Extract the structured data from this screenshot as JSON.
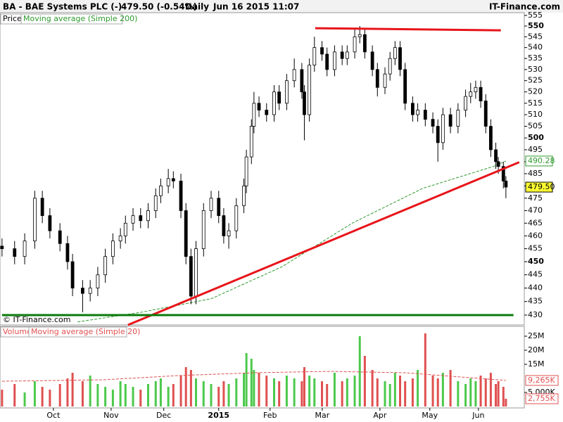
{
  "header": {
    "title": "BA - BAE Systems PLC (-)",
    "quote": "479.50 (-0.54%)",
    "period": "Daily",
    "time": "Jun 16 2015 11:07",
    "brand": "IT-Finance.com",
    "copyright": "© IT-Finance.com"
  },
  "chart_data": [
    {
      "type": "candlestick",
      "legend": "Price",
      "log_scale": true,
      "up_color": "#ffffff",
      "down_color": "#000000",
      "x": [
        0,
        5,
        9,
        13,
        16,
        19,
        23,
        26,
        28,
        32,
        35,
        38,
        41,
        44,
        47,
        49,
        52,
        55,
        58,
        61,
        63,
        66,
        68,
        71,
        73,
        75,
        77,
        80,
        83,
        86,
        88,
        90,
        93,
        96,
        97,
        99,
        100,
        102,
        105,
        108,
        110,
        113,
        116,
        119,
        120,
        122,
        124,
        127,
        129,
        132,
        135,
        137,
        140,
        142,
        144,
        147,
        149,
        152,
        154,
        156,
        158,
        160,
        163,
        165,
        168,
        171,
        173,
        175,
        178,
        181,
        184,
        186,
        188,
        190,
        192,
        194,
        196,
        197,
        199,
        200
      ],
      "open": [
        456,
        455,
        452,
        458,
        475,
        468,
        462,
        457,
        450,
        440,
        438,
        440,
        445,
        452,
        458,
        460,
        465,
        468,
        466,
        470,
        476,
        480,
        483,
        482,
        470,
        452,
        437,
        455,
        470,
        475,
        468,
        460,
        462,
        472,
        480,
        492,
        505,
        515,
        512,
        510,
        520,
        515,
        525,
        530,
        520,
        510,
        532,
        540,
        537,
        530,
        538,
        535,
        538,
        545,
        546,
        538,
        530,
        522,
        528,
        535,
        540,
        530,
        515,
        510,
        512,
        508,
        505,
        498,
        510,
        505,
        512,
        518,
        520,
        522,
        516,
        505,
        495,
        490,
        488,
        482
      ],
      "high": [
        459,
        458,
        461,
        478,
        478,
        471,
        465,
        460,
        453,
        443,
        443,
        448,
        455,
        461,
        463,
        468,
        471,
        471,
        473,
        479,
        483,
        487,
        486,
        485,
        473,
        455,
        458,
        473,
        478,
        478,
        471,
        465,
        475,
        483,
        495,
        508,
        520,
        518,
        515,
        523,
        523,
        528,
        535,
        533,
        523,
        535,
        545,
        543,
        540,
        541,
        541,
        541,
        549,
        550,
        549,
        541,
        533,
        531,
        538,
        543,
        543,
        533,
        518,
        515,
        515,
        511,
        508,
        513,
        513,
        515,
        521,
        524,
        525,
        525,
        519,
        508,
        498,
        492,
        490,
        484
      ],
      "low": [
        452,
        449,
        449,
        455,
        465,
        459,
        454,
        447,
        437,
        431,
        435,
        437,
        442,
        449,
        455,
        457,
        462,
        463,
        463,
        467,
        473,
        477,
        479,
        467,
        449,
        434,
        434,
        452,
        467,
        465,
        457,
        455,
        459,
        469,
        477,
        489,
        502,
        509,
        507,
        507,
        512,
        512,
        522,
        517,
        499,
        507,
        529,
        534,
        527,
        527,
        532,
        532,
        535,
        542,
        535,
        527,
        518,
        519,
        525,
        532,
        527,
        512,
        507,
        507,
        505,
        502,
        490,
        495,
        502,
        502,
        509,
        515,
        517,
        513,
        502,
        492,
        487,
        485,
        479,
        475
      ],
      "close": [
        455,
        452,
        458,
        475,
        468,
        462,
        457,
        450,
        440,
        438,
        440,
        445,
        452,
        458,
        460,
        465,
        468,
        466,
        470,
        476,
        480,
        483,
        482,
        470,
        452,
        437,
        455,
        470,
        475,
        468,
        460,
        462,
        472,
        480,
        492,
        505,
        515,
        512,
        510,
        520,
        515,
        525,
        530,
        520,
        510,
        532,
        540,
        537,
        530,
        538,
        535,
        538,
        545,
        546,
        538,
        530,
        522,
        528,
        535,
        540,
        530,
        515,
        510,
        512,
        508,
        505,
        498,
        510,
        505,
        512,
        518,
        520,
        522,
        516,
        505,
        495,
        490,
        488,
        482,
        479.5
      ],
      "series": [
        {
          "name": "Moving average (Simple 200)",
          "color": "#2e9a2e",
          "x": [
            30,
            55,
            83,
            111,
            139,
            167,
            195,
            200
          ],
          "values": [
            427.5,
            431,
            436,
            448,
            465,
            479,
            488,
            490.28
          ]
        }
      ],
      "trend_lines": [
        {
          "color": "#e8141a",
          "x": [
            50,
            205.3
          ],
          "values": [
            426.4,
            489.8
          ]
        },
        {
          "color": "#e8141a",
          "x": [
            124.3,
            198
          ],
          "values": [
            549,
            548
          ]
        },
        {
          "color": "#0a7a0a",
          "x": [
            0,
            203
          ],
          "values": [
            430,
            430
          ]
        }
      ],
      "markers": [
        {
          "value": 490.28,
          "label": "490.28",
          "color": "#2e9a2e",
          "fill": "#ffffff"
        },
        {
          "value": 479.5,
          "label": "479.50",
          "color": "#000000",
          "fill": "#ffff33"
        }
      ],
      "xlim": [
        -0.8,
        207.3
      ],
      "ylim": [
        426.4,
        556.3
      ],
      "yticks": [
        430,
        435,
        440,
        445,
        450,
        455,
        460,
        465,
        470,
        475,
        480,
        485,
        490,
        495,
        500,
        505,
        510,
        515,
        520,
        525,
        530,
        535,
        540,
        545,
        550,
        555
      ],
      "xticks": [
        {
          "value": 20.4,
          "label": "Oct"
        },
        {
          "value": 43.3,
          "label": "Nov"
        },
        {
          "value": 64.2,
          "label": "Dec"
        },
        {
          "value": 86,
          "label": "2015"
        },
        {
          "value": 106.4,
          "label": "Feb"
        },
        {
          "value": 127.1,
          "label": "Mar"
        },
        {
          "value": 150,
          "label": "Apr"
        },
        {
          "value": 169.8,
          "label": "May"
        },
        {
          "value": 189.1,
          "label": "Jun"
        }
      ]
    },
    {
      "type": "volume",
      "legend": "Volume",
      "up_color": "#4cc94c",
      "down_color": "#e05050",
      "values": [
        6,
        8,
        5,
        9,
        7,
        6,
        8,
        10,
        12,
        9,
        11,
        8,
        7,
        6,
        9,
        8,
        7,
        6,
        8,
        9,
        10,
        7,
        8,
        11,
        14,
        13,
        10,
        9,
        8,
        7,
        9,
        8,
        10,
        12,
        19,
        17,
        13,
        12,
        11,
        10,
        9,
        11,
        10,
        9,
        14,
        11,
        10,
        9,
        8,
        12,
        9,
        10,
        11,
        25,
        18,
        13,
        10,
        9,
        8,
        12,
        11,
        9,
        10,
        13,
        26,
        11,
        10,
        12,
        13,
        9,
        8,
        10,
        9,
        11,
        10,
        12,
        8,
        9,
        7,
        2.755
      ],
      "series": [
        {
          "name": "Moving average (Simple 20)",
          "color": "#e05050",
          "x": [
            0,
            40,
            70,
            100,
            130,
            160,
            200
          ],
          "values": [
            9,
            9.5,
            11,
            12,
            12.5,
            12,
            9.265
          ]
        }
      ],
      "markers": [
        {
          "value": 9.265,
          "label": "9,265K",
          "color": "#e05050",
          "fill": "#ffffff"
        },
        {
          "value": 2.755,
          "label": "2,755K",
          "color": "#e05050",
          "fill": "#ffffff"
        }
      ],
      "ylim": [
        0,
        28.5
      ],
      "yticks": [
        {
          "value": 25,
          "label": "25M"
        },
        {
          "value": 20,
          "label": "20M"
        },
        {
          "value": 15,
          "label": "15M"
        },
        {
          "value": 5,
          "label": "5,000K"
        }
      ]
    }
  ]
}
